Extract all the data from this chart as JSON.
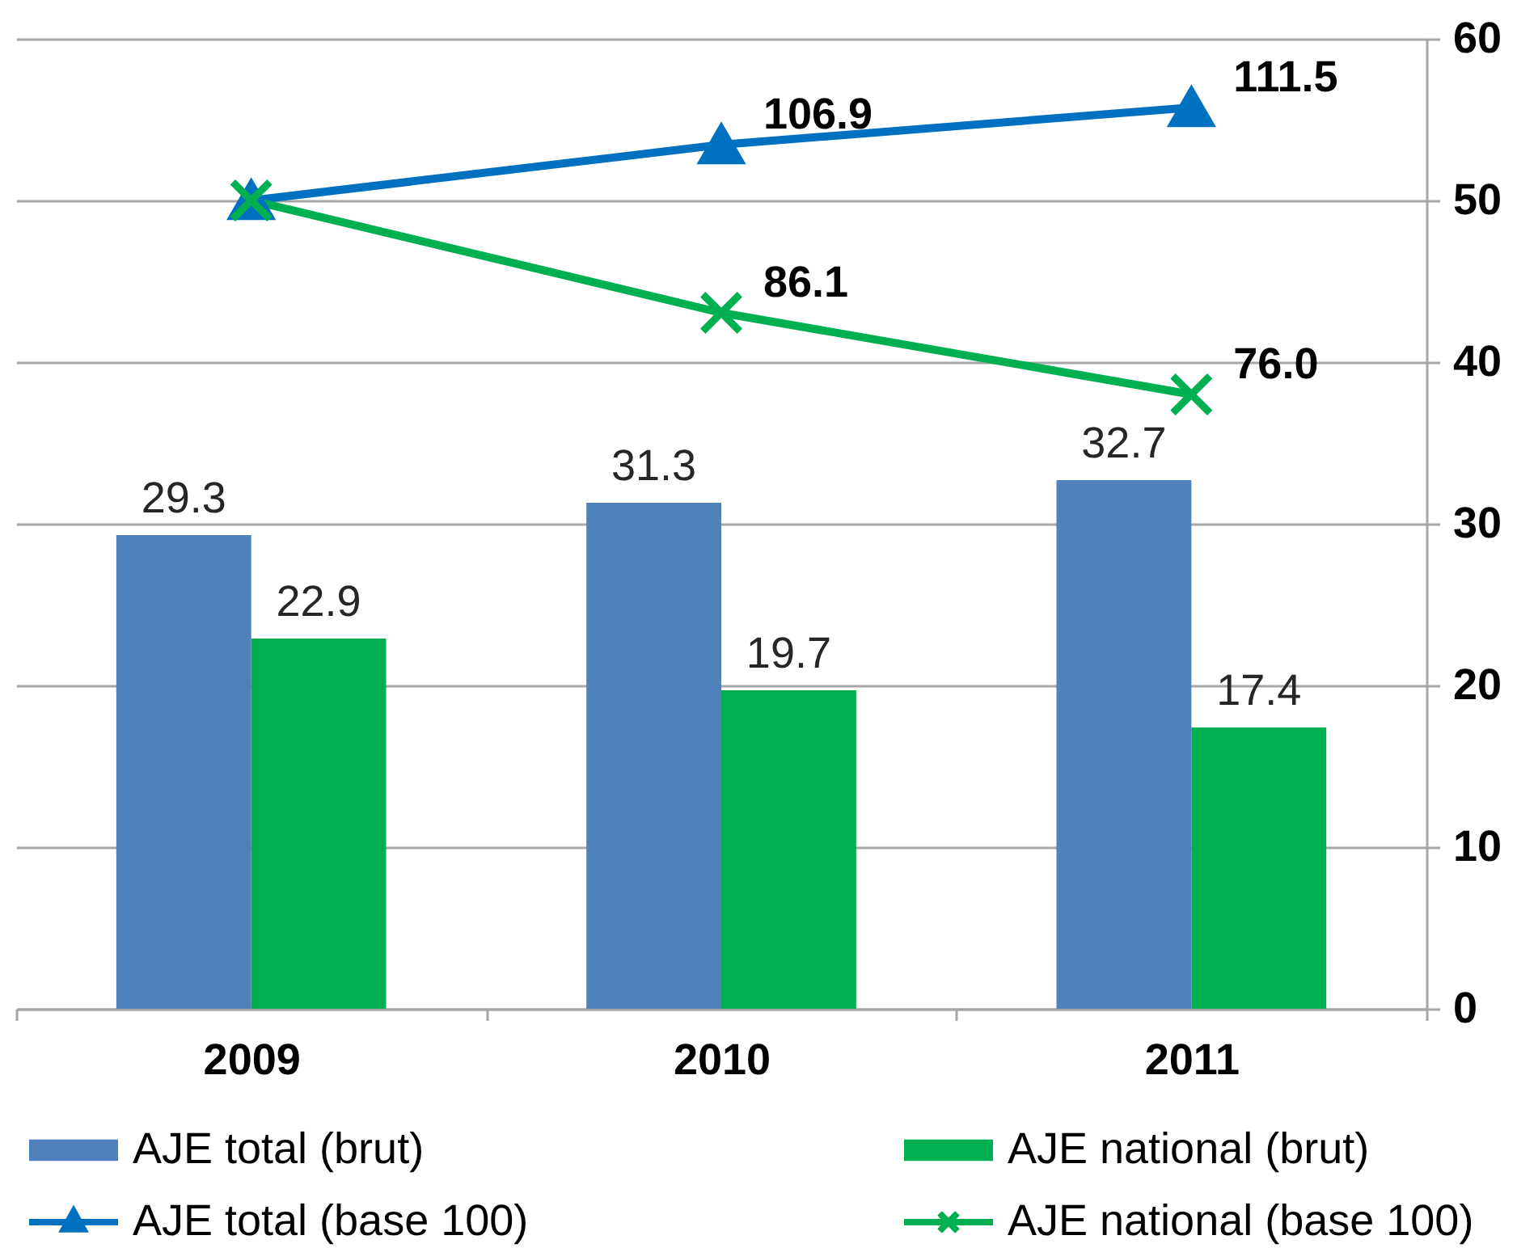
{
  "chart_data": {
    "type": "bar",
    "categories": [
      "2009",
      "2010",
      "2011"
    ],
    "series": [
      {
        "name": "AJE total (brut)",
        "axis": "y2",
        "color": "#4f81bd",
        "values": [
          29.3,
          31.3,
          32.7
        ],
        "value_labels": [
          "29.3",
          "31.3",
          "32.7"
        ]
      },
      {
        "name": "AJE national (brut)",
        "axis": "y2",
        "color": "#00b050",
        "values": [
          22.9,
          19.7,
          17.4
        ],
        "value_labels": [
          "22.9",
          "19.7",
          "17.4"
        ]
      },
      {
        "name": "AJE total (base 100)",
        "type": "line",
        "color": "#0070c0",
        "marker": "triangle",
        "values": [
          100,
          106.9,
          111.5
        ],
        "value_labels": [
          null,
          "106.9",
          "111.5"
        ]
      },
      {
        "name": "AJE national (base 100)",
        "type": "line",
        "color": "#00b050",
        "marker": "cross",
        "values": [
          100,
          86.1,
          76.0
        ],
        "value_labels": [
          null,
          "86.1",
          "76.0"
        ]
      }
    ],
    "ylim": [
      0,
      120
    ],
    "y2lim": [
      0,
      60
    ],
    "y2ticks": [
      0,
      10,
      20,
      30,
      40,
      50,
      60
    ],
    "grid": "y",
    "legend": "bottom"
  }
}
